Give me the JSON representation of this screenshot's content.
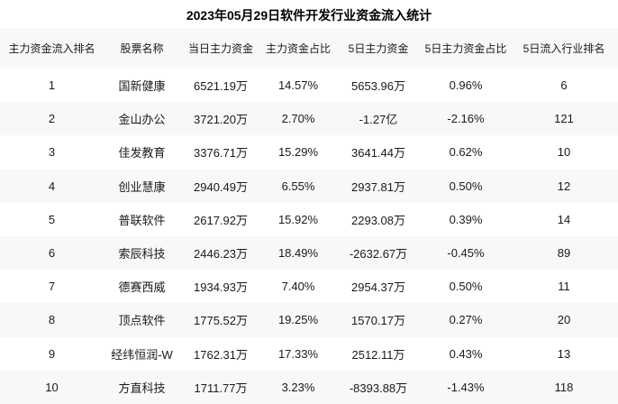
{
  "title": "2023年05月29日软件开发行业资金流入统计",
  "colors": {
    "background": "#ffffff",
    "stripe": "#f7f8fa",
    "text": "#1a1a1a",
    "title_text": "#000000"
  },
  "chart_data": {
    "type": "table",
    "title": "2023年05月29日软件开发行业资金流入统计",
    "columns": [
      "主力资金流入排名",
      "股票名称",
      "当日主力资金",
      "主力资金占比",
      "5日主力资金",
      "5日主力资金占比",
      "5日流入行业排名"
    ],
    "rows": [
      [
        "1",
        "国新健康",
        "6521.19万",
        "14.57%",
        "5653.96万",
        "0.96%",
        "6"
      ],
      [
        "2",
        "金山办公",
        "3721.20万",
        "2.70%",
        "-1.27亿",
        "-2.16%",
        "121"
      ],
      [
        "3",
        "佳发教育",
        "3376.71万",
        "15.29%",
        "3641.44万",
        "0.62%",
        "10"
      ],
      [
        "4",
        "创业慧康",
        "2940.49万",
        "6.55%",
        "2937.81万",
        "0.50%",
        "12"
      ],
      [
        "5",
        "普联软件",
        "2617.92万",
        "15.92%",
        "2293.08万",
        "0.39%",
        "14"
      ],
      [
        "6",
        "索辰科技",
        "2446.23万",
        "18.49%",
        "-2632.67万",
        "-0.45%",
        "89"
      ],
      [
        "7",
        "德赛西威",
        "1934.93万",
        "7.40%",
        "2954.37万",
        "0.50%",
        "11"
      ],
      [
        "8",
        "顶点软件",
        "1775.52万",
        "19.25%",
        "1570.17万",
        "0.27%",
        "20"
      ],
      [
        "9",
        "经纬恒润-W",
        "1762.31万",
        "17.33%",
        "2512.11万",
        "0.43%",
        "13"
      ],
      [
        "10",
        "方直科技",
        "1711.77万",
        "3.23%",
        "-8393.88万",
        "-1.43%",
        "118"
      ]
    ]
  }
}
